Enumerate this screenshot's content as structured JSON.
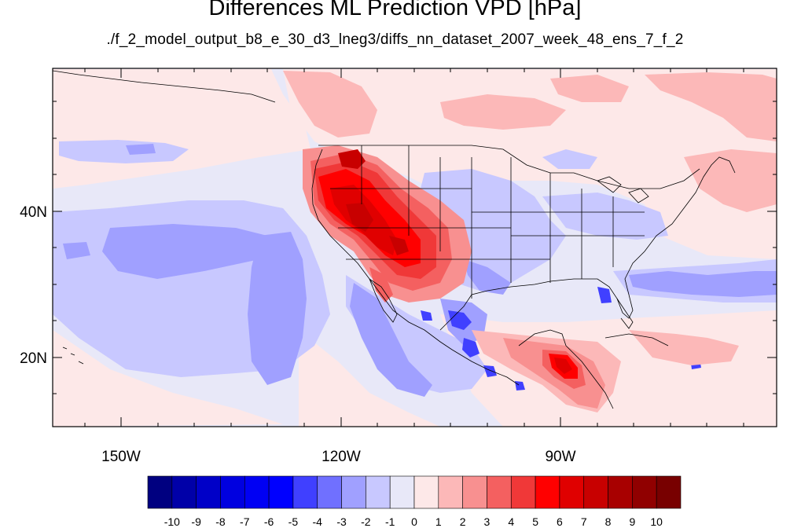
{
  "title": "Differences ML Prediction VPD [hPa]",
  "subtitle": "./f_2_model_output_b8_e_30_d3_lneg3/diffs_nn_dataset_2007_week_48_ens_7_f_2",
  "map": {
    "lon_range": [
      -159.3,
      -60.7
    ],
    "lat_range": [
      10.3,
      59.5
    ],
    "lon_ticks": [
      {
        "value": -150,
        "label": "150W"
      },
      {
        "value": -120,
        "label": "120W"
      },
      {
        "value": -90,
        "label": "90W"
      }
    ],
    "lat_ticks": [
      {
        "value": 40,
        "label": "40N"
      },
      {
        "value": 20,
        "label": "20N"
      }
    ]
  },
  "colorbar": {
    "labels": [
      "-10",
      "-9",
      "-8",
      "-7",
      "-6",
      "-5",
      "-4",
      "-3",
      "-2",
      "-1",
      "0",
      "1",
      "2",
      "3",
      "4",
      "5",
      "6",
      "7",
      "8",
      "9",
      "10"
    ],
    "colors": [
      "#000080",
      "#0000a8",
      "#0000c8",
      "#0000e0",
      "#0000f4",
      "#0000ff",
      "#4040ff",
      "#7070ff",
      "#a0a0ff",
      "#c8c8ff",
      "#e8e8f8",
      "#fde8e8",
      "#fcb8b8",
      "#f89090",
      "#f46060",
      "#f03838",
      "#ff0000",
      "#e00000",
      "#c80000",
      "#a80000",
      "#900000",
      "#780000"
    ]
  },
  "colors": {
    "background_field": "#e8e8f8",
    "coast": "#000000"
  }
}
